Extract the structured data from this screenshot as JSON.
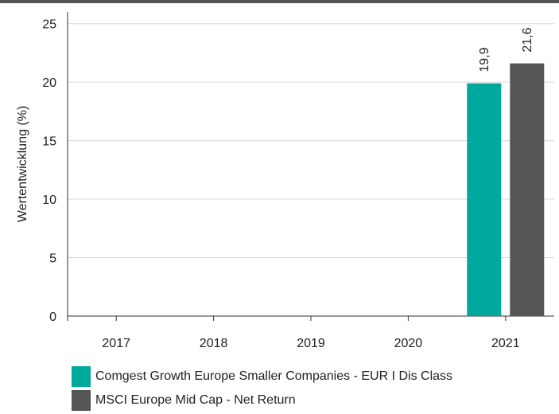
{
  "chart_data": {
    "type": "bar",
    "categories": [
      "2017",
      "2018",
      "2019",
      "2020",
      "2021"
    ],
    "series": [
      {
        "name": "Comgest Growth Europe Smaller Companies - EUR I Dis Class",
        "color": "#00a99d",
        "values": [
          null,
          null,
          null,
          null,
          19.9
        ],
        "labels": [
          "",
          "",
          "",
          "",
          "19,9"
        ]
      },
      {
        "name": "MSCI Europe Mid Cap - Net Return",
        "color": "#555555",
        "values": [
          null,
          null,
          null,
          null,
          21.6
        ],
        "labels": [
          "",
          "",
          "",
          "",
          "21,6"
        ]
      }
    ],
    "ylabel": "Wertentwicklung (%)",
    "ylim": [
      0,
      26
    ],
    "yticks": [
      0,
      5,
      10,
      15,
      20,
      25
    ],
    "ytick_labels": [
      "0",
      "5",
      "10",
      "15",
      "20",
      "25"
    ],
    "grid": true,
    "legend_position": "bottom"
  }
}
